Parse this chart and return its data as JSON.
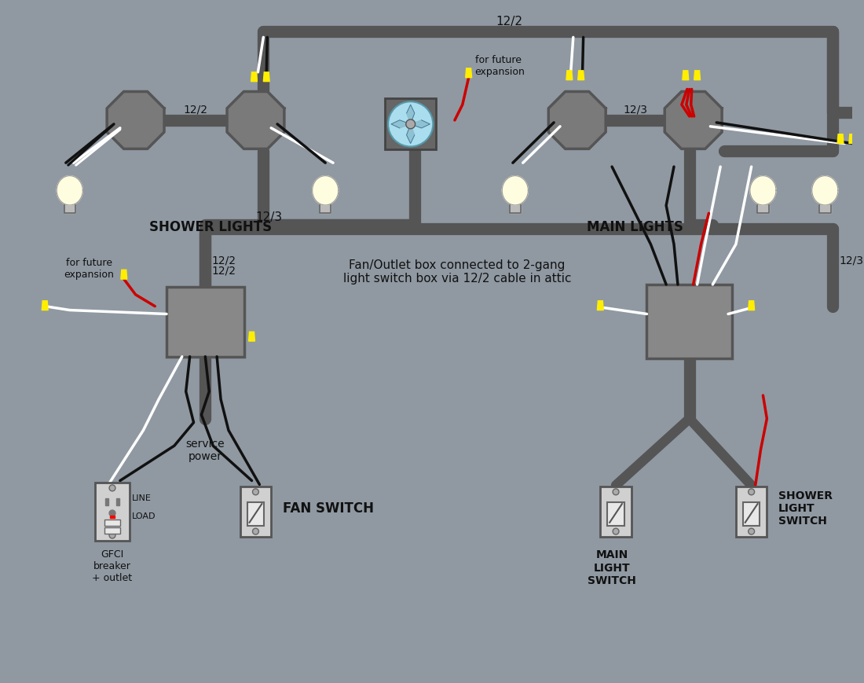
{
  "background_color": "#9099a2",
  "wire_white": "#ffffff",
  "wire_black": "#111111",
  "wire_red": "#cc0000",
  "cable_color": "#555555",
  "octagon_fill": "#7a7a7a",
  "octagon_edge": "#555555",
  "bulb_body": "#fffde0",
  "bulb_base": "#cccccc",
  "yellow_tip": "#ffee00",
  "box_fill": "#888888",
  "box_edge": "#555555",
  "switch_fill": "#d0d0d0",
  "switch_edge": "#555555",
  "outlet_fill": "#d0d0d0",
  "fan_box_fill": "#666666",
  "fan_circle_fill": "#aaddee",
  "text_color": "#111111",
  "label_shower": "SHOWER LIGHTS",
  "label_main": "MAIN LIGHTS",
  "label_fan_switch": "FAN SWITCH",
  "label_main_switch": "MAIN\nLIGHT\nSWITCH",
  "label_shower_switch": "SHOWER\nLIGHT\nSWITCH",
  "label_gfci": "GFCI\nbreaker\n+ outlet",
  "label_line": "LINE",
  "label_load": "LOAD",
  "label_service": "service\npower",
  "label_future1": "for future\nexpansion",
  "label_future2": "for future\nexpansion",
  "label_fan_text": "Fan/Outlet box connected to 2-gang\nlight switch box via 12/2 cable in attic"
}
